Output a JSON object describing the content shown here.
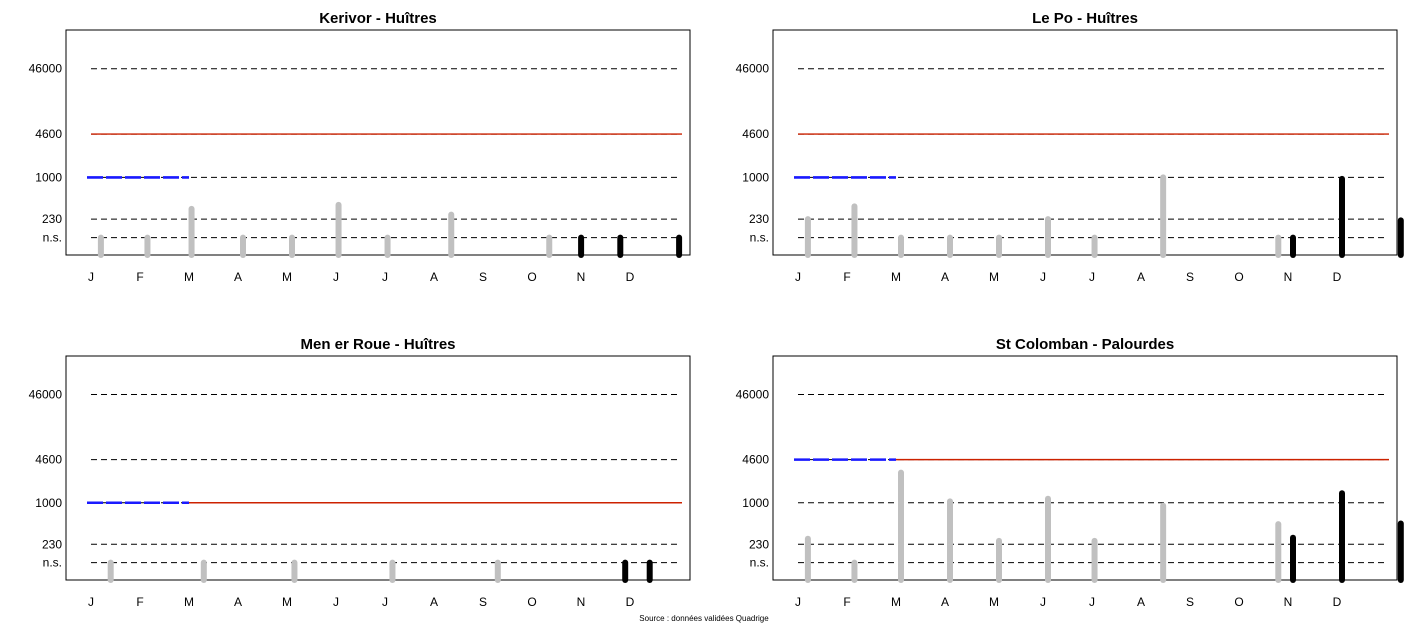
{
  "colors": {
    "threshold_line": "#000000",
    "reference_line": "#cc2200",
    "prior_line": "#1a1aff",
    "historical_bar": "#c0c0c0",
    "current_bar": "#000000",
    "frame": "#000000"
  },
  "source_note": "Source : données validées Quadrige",
  "chart_data": [
    {
      "type": "bar",
      "title": "Kerivor - Huîtres",
      "y_scale": "log",
      "y_ticks": [
        {
          "label": "n.s.",
          "value": 120
        },
        {
          "label": "230",
          "value": 230
        },
        {
          "label": "1000",
          "value": 1000
        },
        {
          "label": "4600",
          "value": 4600
        },
        {
          "label": "46000",
          "value": 46000
        }
      ],
      "y_range": [
        65,
        180000
      ],
      "x_range": [
        0,
        12.8
      ],
      "x_ticks": [
        "J",
        "F",
        "M",
        "A",
        "M",
        "J",
        "J",
        "A",
        "S",
        "O",
        "N",
        "D"
      ],
      "threshold_lines": [
        120,
        230,
        1000,
        4600,
        46000
      ],
      "reference_line": {
        "value": 4600,
        "from_month": 0,
        "to_month": 12.7
      },
      "prior_line": {
        "value": 1000,
        "from_month": 0,
        "to_month": 2
      },
      "historical_bars": [
        {
          "month": 0.1,
          "value": 120
        },
        {
          "month": 1.05,
          "value": 120
        },
        {
          "month": 1.95,
          "value": 330
        },
        {
          "month": 3.0,
          "value": 120
        },
        {
          "month": 4.0,
          "value": 120
        },
        {
          "month": 4.95,
          "value": 380
        },
        {
          "month": 5.95,
          "value": 120
        },
        {
          "month": 7.25,
          "value": 270
        },
        {
          "month": 9.25,
          "value": 120
        }
      ],
      "current_bars": [
        {
          "month": 9.9,
          "value": 120
        },
        {
          "month": 10.7,
          "value": 120
        },
        {
          "month": 11.9,
          "value": 120
        }
      ]
    },
    {
      "type": "bar",
      "title": "Le Po - Huîtres",
      "y_scale": "log",
      "y_ticks": [
        {
          "label": "n.s.",
          "value": 120
        },
        {
          "label": "230",
          "value": 230
        },
        {
          "label": "1000",
          "value": 1000
        },
        {
          "label": "4600",
          "value": 4600
        },
        {
          "label": "46000",
          "value": 46000
        }
      ],
      "y_range": [
        65,
        180000
      ],
      "x_range": [
        0,
        12.8
      ],
      "x_ticks": [
        "J",
        "F",
        "M",
        "A",
        "M",
        "J",
        "J",
        "A",
        "S",
        "O",
        "N",
        "D"
      ],
      "threshold_lines": [
        120,
        230,
        1000,
        4600,
        46000
      ],
      "reference_line": {
        "value": 4600,
        "from_month": 0,
        "to_month": 12.7
      },
      "prior_line": {
        "value": 1000,
        "from_month": 0,
        "to_month": 2
      },
      "historical_bars": [
        {
          "month": 0.1,
          "value": 230
        },
        {
          "month": 1.05,
          "value": 360
        },
        {
          "month": 2.0,
          "value": 120
        },
        {
          "month": 3.0,
          "value": 120
        },
        {
          "month": 4.0,
          "value": 120
        },
        {
          "month": 5.0,
          "value": 230
        },
        {
          "month": 5.95,
          "value": 120
        },
        {
          "month": 7.35,
          "value": 1000
        },
        {
          "month": 9.7,
          "value": 120
        }
      ],
      "current_bars": [
        {
          "month": 10.0,
          "value": 120
        },
        {
          "month": 11.0,
          "value": 950
        },
        {
          "month": 12.2,
          "value": 220
        }
      ]
    },
    {
      "type": "bar",
      "title": "Men er Roue - Huîtres",
      "y_scale": "log",
      "y_ticks": [
        {
          "label": "n.s.",
          "value": 120
        },
        {
          "label": "230",
          "value": 230
        },
        {
          "label": "1000",
          "value": 1000
        },
        {
          "label": "4600",
          "value": 4600
        },
        {
          "label": "46000",
          "value": 46000
        }
      ],
      "y_range": [
        65,
        180000
      ],
      "x_range": [
        0,
        12.8
      ],
      "x_ticks": [
        "J",
        "F",
        "M",
        "A",
        "M",
        "J",
        "J",
        "A",
        "S",
        "O",
        "N",
        "D"
      ],
      "threshold_lines": [
        120,
        230,
        1000,
        4600,
        46000
      ],
      "reference_line": {
        "value": 1000,
        "from_month": 2,
        "to_month": 12.7
      },
      "prior_line": {
        "value": 1000,
        "from_month": 0,
        "to_month": 2
      },
      "historical_bars": [
        {
          "month": 0.3,
          "value": 120
        },
        {
          "month": 2.2,
          "value": 120
        },
        {
          "month": 4.05,
          "value": 120
        },
        {
          "month": 6.05,
          "value": 120
        },
        {
          "month": 8.2,
          "value": 120
        }
      ],
      "current_bars": [
        {
          "month": 10.8,
          "value": 120
        },
        {
          "month": 11.3,
          "value": 120
        }
      ]
    },
    {
      "type": "bar",
      "title": "St Colomban - Palourdes",
      "y_scale": "log",
      "y_ticks": [
        {
          "label": "n.s.",
          "value": 120
        },
        {
          "label": "230",
          "value": 230
        },
        {
          "label": "1000",
          "value": 1000
        },
        {
          "label": "4600",
          "value": 4600
        },
        {
          "label": "46000",
          "value": 46000
        }
      ],
      "y_range": [
        65,
        180000
      ],
      "x_range": [
        0,
        12.8
      ],
      "x_ticks": [
        "J",
        "F",
        "M",
        "A",
        "M",
        "J",
        "J",
        "A",
        "S",
        "O",
        "N",
        "D"
      ],
      "threshold_lines": [
        120,
        230,
        1000,
        4600,
        46000
      ],
      "reference_line": {
        "value": 4600,
        "from_month": 2,
        "to_month": 12.7
      },
      "prior_line": {
        "value": 4600,
        "from_month": 0,
        "to_month": 2
      },
      "historical_bars": [
        {
          "month": 0.1,
          "value": 280
        },
        {
          "month": 1.05,
          "value": 120
        },
        {
          "month": 2.0,
          "value": 2900
        },
        {
          "month": 3.0,
          "value": 1050
        },
        {
          "month": 4.0,
          "value": 260
        },
        {
          "month": 5.0,
          "value": 1150
        },
        {
          "month": 5.95,
          "value": 260
        },
        {
          "month": 7.35,
          "value": 900
        },
        {
          "month": 9.7,
          "value": 470
        }
      ],
      "current_bars": [
        {
          "month": 10.0,
          "value": 290
        },
        {
          "month": 11.0,
          "value": 1400
        },
        {
          "month": 12.2,
          "value": 480
        }
      ]
    }
  ]
}
